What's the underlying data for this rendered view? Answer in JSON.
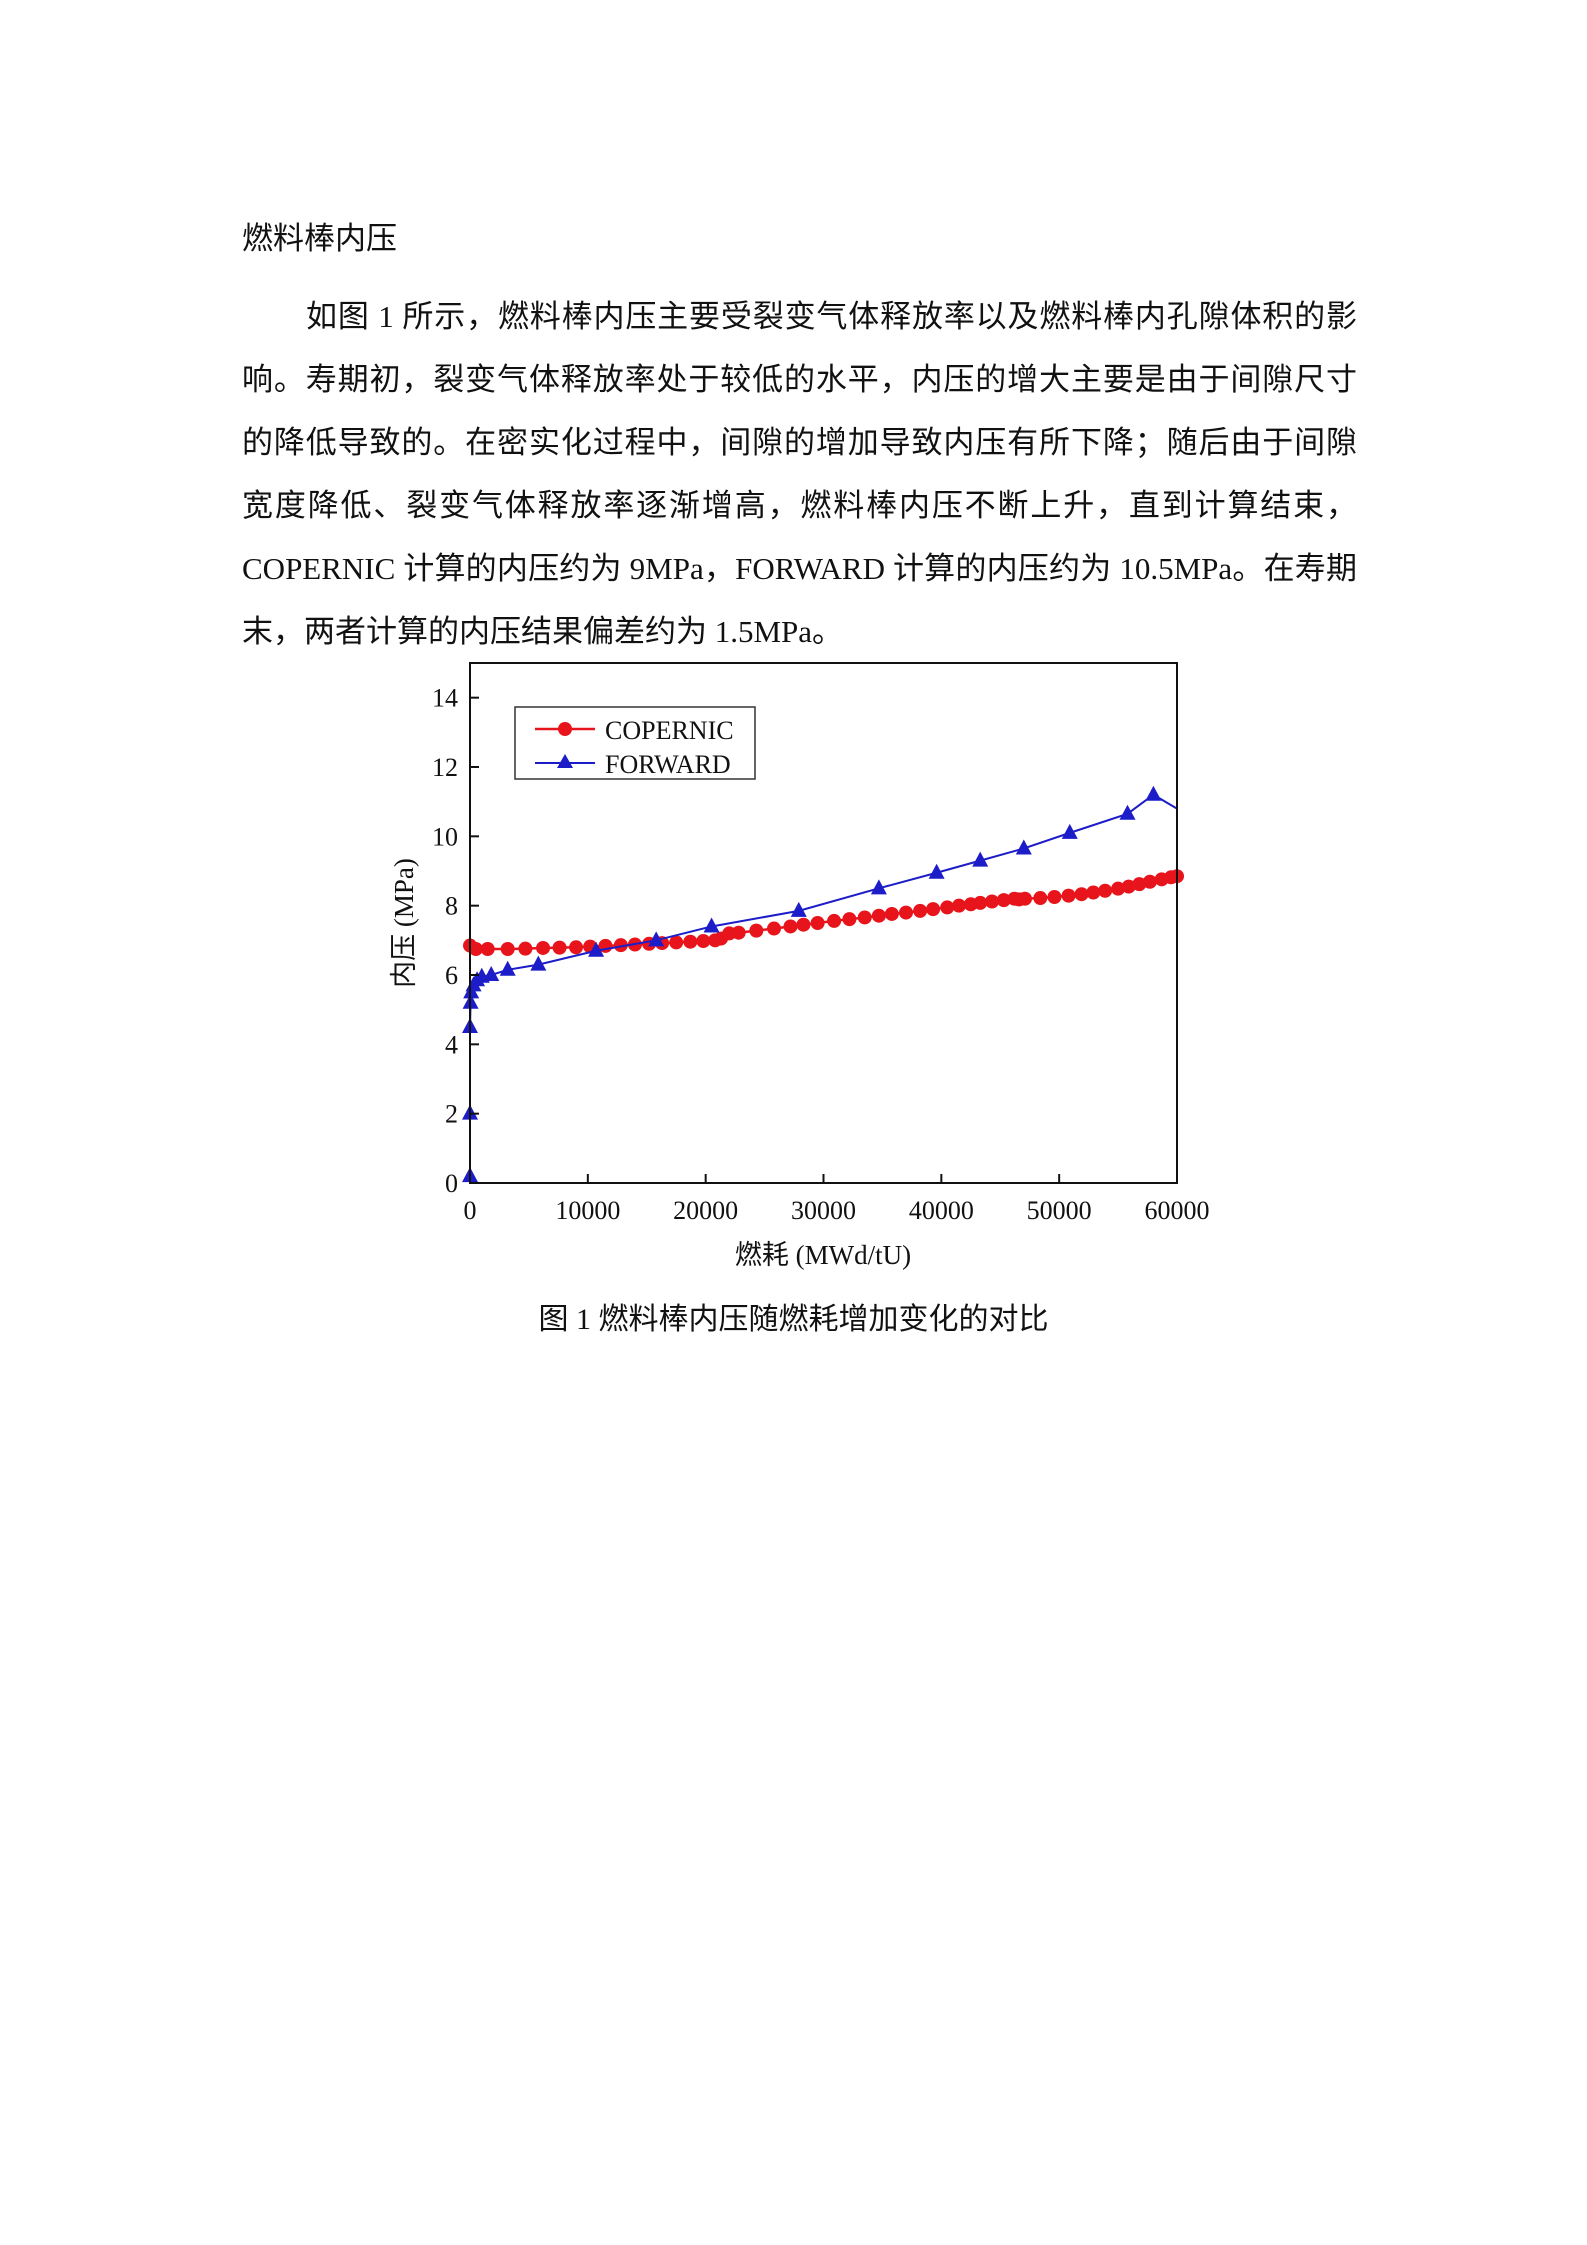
{
  "section_title": "燃料棒内压",
  "paragraph": "如图 1 所示，燃料棒内压主要受裂变气体释放率以及燃料棒内孔隙体积的影响。寿期初，裂变气体释放率处于较低的水平，内压的增大主要是由于间隙尺寸的降低导致的。在密实化过程中，间隙的增加导致内压有所下降；随后由于间隙宽度降低、裂变气体释放率逐渐增高，燃料棒内压不断上升，直到计算结束，COPERNIC 计算的内压约为 9MPa，FORWARD 计算的内压约为 10.5MPa。在寿期末，两者计算的内压结果偏差约为 1.5MPa。",
  "caption": "图  1  燃料棒内压随燃耗增加变化的对比",
  "chart_data": {
    "type": "line",
    "title": "",
    "xlabel": "燃耗 (MWd/tU)",
    "ylabel": "内压 (MPa)",
    "xlim": [
      0,
      60000
    ],
    "ylim": [
      0,
      15
    ],
    "xticks": [
      0,
      10000,
      20000,
      30000,
      40000,
      50000,
      60000
    ],
    "yticks": [
      0,
      2,
      4,
      6,
      8,
      10,
      12,
      14
    ],
    "grid": false,
    "legend_position": "top-left",
    "series": [
      {
        "name": "COPERNIC",
        "color": "#e8141c",
        "marker": "circle",
        "x": [
          0,
          500,
          1500,
          3200,
          4700,
          6200,
          7600,
          9000,
          10200,
          11500,
          12800,
          14000,
          15200,
          16300,
          17500,
          18700,
          19800,
          20800,
          21300,
          22000,
          22800,
          24300,
          25800,
          27200,
          28300,
          29500,
          30900,
          32200,
          33500,
          34700,
          35800,
          37000,
          38200,
          39300,
          40500,
          41500,
          42500,
          43300,
          44300,
          45300,
          46200,
          46600,
          47100,
          48400,
          49600,
          50800,
          51900,
          52900,
          53900,
          55000,
          55900,
          56800,
          57700,
          58700,
          59500,
          60000
        ],
        "y": [
          6.85,
          6.75,
          6.75,
          6.75,
          6.76,
          6.78,
          6.79,
          6.8,
          6.82,
          6.84,
          6.86,
          6.88,
          6.9,
          6.92,
          6.94,
          6.96,
          6.98,
          7.0,
          7.05,
          7.2,
          7.22,
          7.28,
          7.34,
          7.4,
          7.45,
          7.5,
          7.56,
          7.61,
          7.66,
          7.71,
          7.76,
          7.8,
          7.85,
          7.9,
          7.95,
          8.0,
          8.04,
          8.08,
          8.12,
          8.16,
          8.2,
          8.18,
          8.2,
          8.22,
          8.25,
          8.29,
          8.33,
          8.38,
          8.43,
          8.49,
          8.55,
          8.62,
          8.69,
          8.76,
          8.82,
          8.85
        ]
      },
      {
        "name": "FORWARD",
        "color": "#1c1cc8",
        "marker": "triangle",
        "x": [
          0,
          0,
          0,
          50,
          100,
          300,
          600,
          1000,
          1800,
          3200,
          5800,
          10700,
          15800,
          20500,
          27900,
          34700,
          39600,
          43300,
          47000,
          50900,
          55800,
          58000,
          60000
        ],
        "y": [
          0.2,
          2.0,
          4.5,
          5.2,
          5.5,
          5.7,
          5.85,
          5.95,
          6.0,
          6.15,
          6.3,
          6.7,
          7.0,
          7.4,
          7.85,
          8.5,
          8.95,
          9.3,
          9.65,
          10.1,
          10.65,
          11.2,
          10.8
        ],
        "last_point_marker": false
      }
    ]
  }
}
